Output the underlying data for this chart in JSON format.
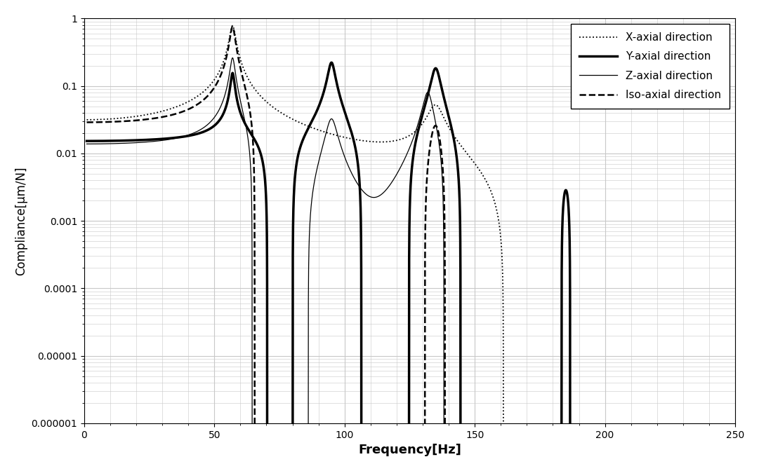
{
  "title": "",
  "xlabel": "Frequency[Hz]",
  "ylabel": "Compliance[μm/N]",
  "xlim": [
    0,
    250
  ],
  "xticks": [
    0,
    50,
    100,
    150,
    200,
    250
  ],
  "xticklabels": [
    "0",
    "50",
    "100",
    "150",
    "200",
    "250"
  ],
  "ytick_vals": [
    1e-06,
    1e-05,
    0.0001,
    0.001,
    0.01,
    0.1,
    1
  ],
  "ytick_labels": [
    "0.000001",
    "0.00001",
    "0.0001",
    "0.001",
    "0.01",
    "0.1",
    "1"
  ],
  "background_color": "#ffffff",
  "grid_color": "#c8c8c8",
  "legend_labels": [
    "X-axial direction",
    "Y-axial direction",
    "Z-axial direction",
    "Iso-axial direction"
  ]
}
